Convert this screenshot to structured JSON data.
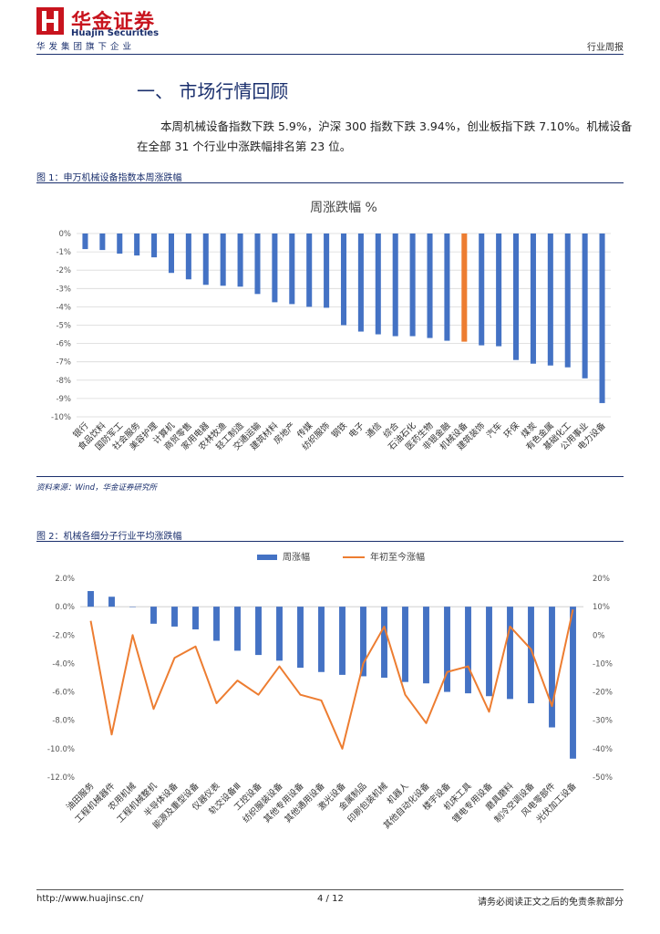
{
  "header": {
    "logo_cn": "华金证券",
    "logo_en": "Huajin Securities",
    "logo_sub": "华发集团旗下企业",
    "report_type": "行业周报"
  },
  "section": {
    "title": "一、 市场行情回顾",
    "para_line1": "本周机械设备指数下跌 5.9%，沪深 300  指数下跌 3.94%，创业板指下跌 7.10%。机械设备",
    "para_line2": "在全部 31 个行业中涨跌幅排名第 23  位。"
  },
  "figure1": {
    "caption": "图 1：申万机械设备指数本周涨跌幅",
    "source": "资料来源：Wind，华金证券研究所"
  },
  "figure2": {
    "caption": "图 2：机械各细分子行业平均涨跌幅"
  },
  "footer": {
    "url": "http://www.huajinsc.cn/",
    "page": "4 / 12",
    "disclaimer": "请务必阅读正文之后的免责条款部分"
  },
  "colors": {
    "blue": "#4472c4",
    "orange": "#ed7d31",
    "navy": "#1a2f6d"
  },
  "chart_data": [
    {
      "type": "bar",
      "title": "周涨跌幅 %",
      "ylim": [
        -10,
        0
      ],
      "yticks": [
        "0%",
        "-1%",
        "-2%",
        "-3%",
        "-4%",
        "-5%",
        "-6%",
        "-7%",
        "-8%",
        "-9%",
        "-10%"
      ],
      "highlight": "机械设备",
      "categories": [
        "银行",
        "食品饮料",
        "国防军工",
        "社会服务",
        "美容护理",
        "计算机",
        "商贸零售",
        "家用电器",
        "农林牧渔",
        "轻工制造",
        "交通运输",
        "建筑材料",
        "房地产",
        "传媒",
        "纺织服饰",
        "钢铁",
        "电子",
        "通信",
        "综合",
        "石油石化",
        "医药生物",
        "非银金融",
        "机械设备",
        "建筑装饰",
        "汽车",
        "环保",
        "煤炭",
        "有色金属",
        "基础化工",
        "公用事业",
        "电力设备"
      ],
      "values": [
        -0.85,
        -0.9,
        -1.1,
        -1.2,
        -1.3,
        -2.15,
        -2.5,
        -2.8,
        -2.85,
        -2.9,
        -3.3,
        -3.75,
        -3.85,
        -4.0,
        -4.05,
        -5.0,
        -5.35,
        -5.5,
        -5.6,
        -5.6,
        -5.7,
        -5.85,
        -5.9,
        -6.1,
        -6.15,
        -6.9,
        -7.1,
        -7.2,
        -7.3,
        -7.9,
        -9.25
      ]
    },
    {
      "type": "bar+line",
      "legend": [
        "周涨幅",
        "年初至今涨幅"
      ],
      "ylim_left": [
        -12,
        2
      ],
      "ylim_right": [
        -50,
        20
      ],
      "yticks_left": [
        "2.0%",
        "0.0%",
        "-2.0%",
        "-4.0%",
        "-6.0%",
        "-8.0%",
        "-10.0%",
        "-12.0%"
      ],
      "yticks_right": [
        "20%",
        "10%",
        "0%",
        "-10%",
        "-20%",
        "-30%",
        "-40%",
        "-50%"
      ],
      "categories": [
        "油田服务",
        "工程机械器件",
        "农用机械",
        "工程机械整机",
        "半导体设备",
        "能源及重型设备",
        "仪器仪表",
        "轨交设备Ⅲ",
        "工控设备",
        "纺织服装设备",
        "其他专用设备",
        "其他通用设备",
        "激光设备",
        "金属制品",
        "印刷包装机械",
        "机器人",
        "其他自动化设备",
        "楼宇设备",
        "机床工具",
        "锂电专用设备",
        "磨具磨料",
        "制冷空调设备",
        "风电零部件",
        "光伏加工设备"
      ],
      "weekly": [
        1.1,
        0.7,
        0.0,
        -1.2,
        -1.4,
        -1.6,
        -2.4,
        -3.1,
        -3.4,
        -3.8,
        -4.3,
        -4.6,
        -4.8,
        -4.9,
        -5.0,
        -5.3,
        -5.4,
        -6.0,
        -6.1,
        -6.3,
        -6.5,
        -6.8,
        -8.5,
        -10.7
      ],
      "ytd": [
        5,
        -35,
        0,
        -26,
        -8,
        -4,
        -24,
        -16,
        -21,
        -11,
        -21,
        -23,
        -40,
        -10,
        3,
        -21,
        -31,
        -13,
        -11,
        -27,
        3,
        -5,
        -25,
        9
      ]
    }
  ]
}
